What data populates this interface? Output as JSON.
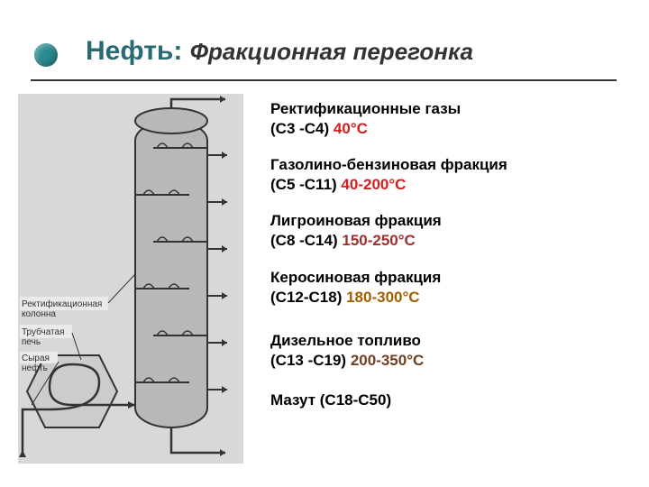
{
  "bullet_color": "#2a8a8f",
  "title": {
    "main": "Нефть:",
    "main_color": "#2a6a75",
    "sub": "Фракционная перегонка",
    "sub_color": "#333333"
  },
  "fractions": [
    {
      "name": "Ректификационные газы",
      "carbon": " (С3 -С4)",
      "temp": "40°С",
      "temp_color": "#d02020"
    },
    {
      "name": "Газолино-бензиновая фракция",
      "carbon": "(С5 -С11)",
      "temp": "40-200°С",
      "temp_color": "#d02020"
    },
    {
      "name": "Лигроиновая фракция",
      "carbon": "(С8 -С14)",
      "temp": "150-250°С",
      "temp_color": "#a03030"
    },
    {
      "name": "Керосиновая фракция",
      "carbon": "(С12-С18)",
      "temp": "180-300°С",
      "temp_color": "#a06000"
    },
    {
      "name": "Дизельное топливо",
      "carbon": "(С13 -С19)",
      "temp": "200-350°С",
      "temp_color": "#704020"
    },
    {
      "name": "Мазут (С18-С50)",
      "carbon": "",
      "temp": "",
      "temp_color": "#000000"
    }
  ],
  "diagram": {
    "background": "#d8d8d8",
    "column_fill": "#b8b8b8",
    "column_stroke": "#333333",
    "furnace_fill": "#cccccc",
    "tray_count": 6,
    "labels": {
      "column": "Ректификационная\nколонна",
      "furnace": "Трубчатая\nпечь",
      "crude": "Сырая\nнефть"
    }
  }
}
